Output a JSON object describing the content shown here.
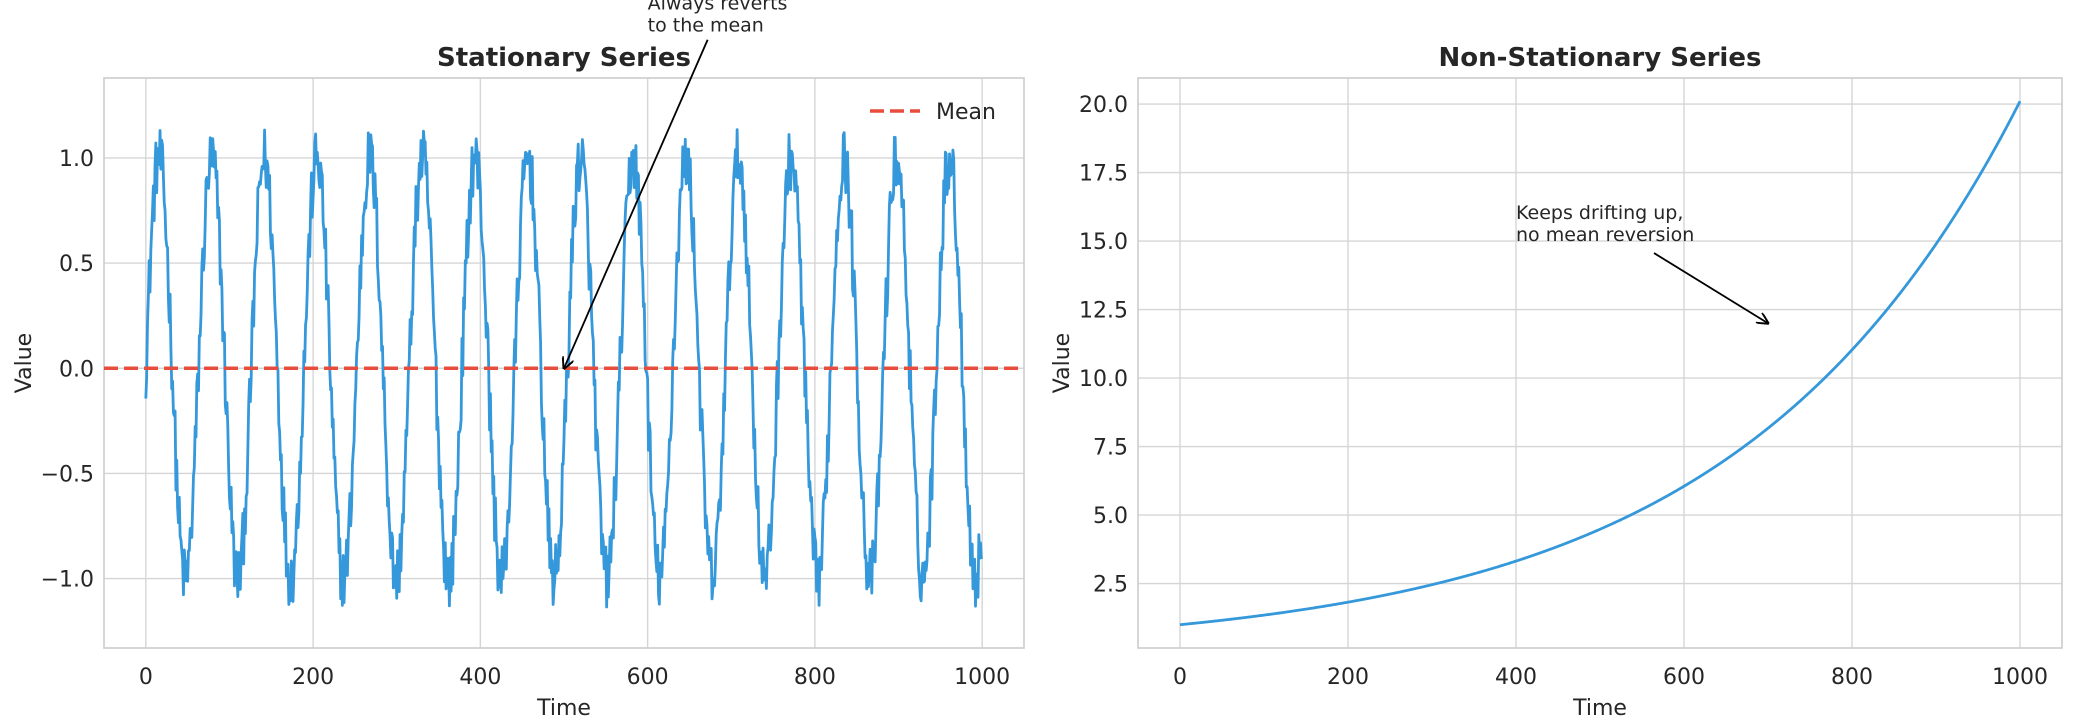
{
  "chart_data": [
    {
      "type": "line",
      "title": "Stationary Series",
      "xlabel": "Time",
      "ylabel": "Value",
      "xlim": [
        -50,
        1050
      ],
      "ylim": [
        -1.33,
        1.38
      ],
      "xticks": [
        0,
        200,
        400,
        600,
        800,
        1000
      ],
      "xtick_labels": [
        "0",
        "200",
        "400",
        "600",
        "800",
        "1000"
      ],
      "yticks": [
        -1.0,
        -0.5,
        0.0,
        0.5,
        1.0
      ],
      "ytick_labels": [
        "−1.0",
        "−0.5",
        "0.0",
        "0.5",
        "1.0"
      ],
      "grid": true,
      "legend": {
        "placement": "top-right",
        "entries": [
          "Mean"
        ]
      },
      "series": [
        {
          "kind": "line",
          "color": "#3498db",
          "x_start": 0,
          "x_end": 999,
          "points": 1000,
          "pattern": "noisy sine wave",
          "amplitude": 1.0,
          "period": 63,
          "noise_amplitude": 0.15
        },
        {
          "name": "Mean",
          "kind": "hline",
          "y": 0.0,
          "color": "#e74c3c",
          "style": "dashed"
        }
      ],
      "annotations": [
        {
          "text_lines": [
            "Always reverts",
            "to the mean"
          ],
          "text_x": 600,
          "text_y": 1.6,
          "arrow_to": [
            500,
            0.0
          ]
        }
      ]
    },
    {
      "type": "line",
      "title": "Non-Stationary Series",
      "xlabel": "Time",
      "ylabel": "Value",
      "xlim": [
        -50,
        1050
      ],
      "ylim": [
        0.15,
        20.95
      ],
      "xticks": [
        0,
        200,
        400,
        600,
        800,
        1000
      ],
      "xtick_labels": [
        "0",
        "200",
        "400",
        "600",
        "800",
        "1000"
      ],
      "yticks": [
        2.5,
        5.0,
        7.5,
        10.0,
        12.5,
        15.0,
        17.5,
        20.0
      ],
      "ytick_labels": [
        "2.5",
        "5.0",
        "7.5",
        "10.0",
        "12.5",
        "15.0",
        "17.5",
        "20.0"
      ],
      "grid": true,
      "series": [
        {
          "kind": "line",
          "color": "#3498db",
          "x_start": 0,
          "x_end": 1000,
          "points": 1001,
          "pattern": "exponential growth",
          "y_start": 1.0,
          "y_end": 20.1
        }
      ],
      "annotations": [
        {
          "text_lines": [
            "Keeps drifting up,",
            "no mean reversion"
          ],
          "text_x": 400,
          "text_y": 15.0,
          "arrow_to": [
            700,
            12.0
          ]
        }
      ]
    }
  ]
}
